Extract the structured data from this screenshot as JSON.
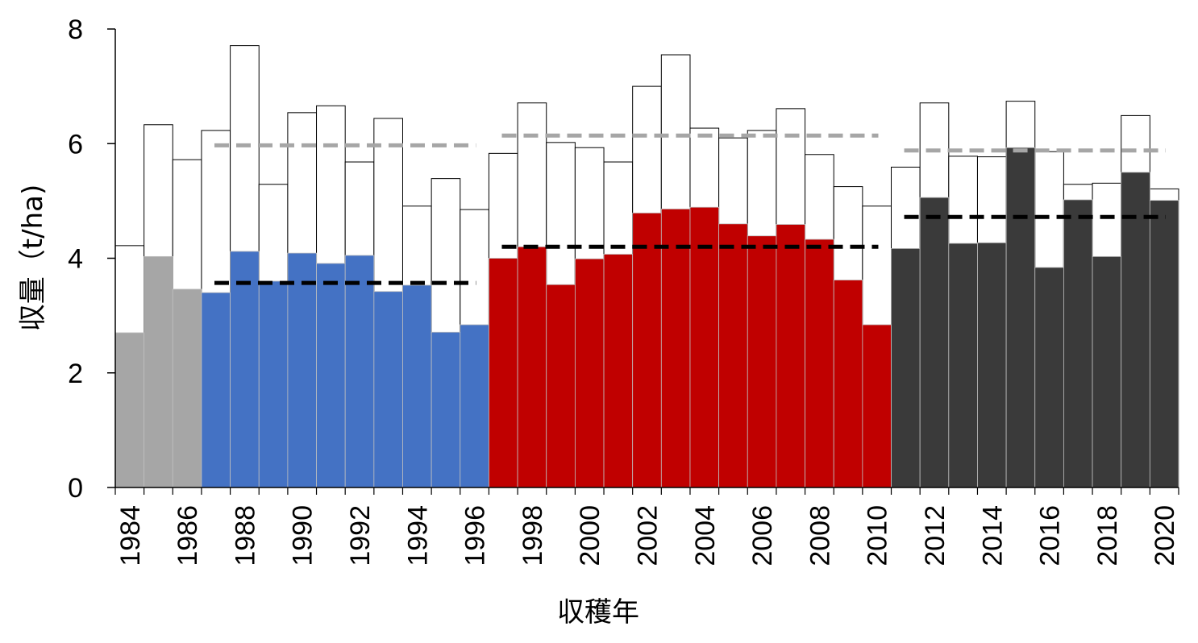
{
  "chart_data": {
    "type": "bar",
    "xlabel": "収穫年",
    "ylabel": "収量（t/ha)",
    "ylim": [
      0,
      8
    ],
    "yticks": [
      0,
      2,
      4,
      6,
      8
    ],
    "grid": false,
    "legend": "none",
    "years": [
      1984,
      1985,
      1986,
      1987,
      1988,
      1989,
      1990,
      1991,
      1992,
      1993,
      1994,
      1995,
      1996,
      1997,
      1998,
      1999,
      2000,
      2001,
      2002,
      2003,
      2004,
      2005,
      2006,
      2007,
      2008,
      2009,
      2010,
      2011,
      2012,
      2013,
      2014,
      2015,
      2016,
      2017,
      2018,
      2019,
      2020
    ],
    "xtick_labels": [
      "1984",
      "1986",
      "1988",
      "1990",
      "1992",
      "1994",
      "1996",
      "1998",
      "2000",
      "2002",
      "2004",
      "2006",
      "2008",
      "2010",
      "2012",
      "2014",
      "2016",
      "2018",
      "2020"
    ],
    "filled_values": [
      2.7,
      4.03,
      3.46,
      3.4,
      4.12,
      3.6,
      4.09,
      3.91,
      4.05,
      3.42,
      3.53,
      2.71,
      2.84,
      4.0,
      4.2,
      3.54,
      3.99,
      4.07,
      4.79,
      4.86,
      4.89,
      4.6,
      4.39,
      4.59,
      4.33,
      3.62,
      2.84,
      4.17,
      5.06,
      4.26,
      4.27,
      5.93,
      3.84,
      5.02,
      4.03,
      5.5,
      5.01
    ],
    "outline_values": [
      4.22,
      6.33,
      5.72,
      6.23,
      7.71,
      5.29,
      6.54,
      6.66,
      5.68,
      6.44,
      4.91,
      5.39,
      4.85,
      5.83,
      6.71,
      6.02,
      5.93,
      5.68,
      7.0,
      7.55,
      6.27,
      6.1,
      6.23,
      6.61,
      5.81,
      5.25,
      4.91,
      5.59,
      6.71,
      5.78,
      5.77,
      6.74,
      5.86,
      5.29,
      5.31,
      6.49,
      5.21
    ],
    "groups": [
      {
        "start": 1984,
        "end": 1986,
        "color": "#a6a6a6"
      },
      {
        "start": 1987,
        "end": 1996,
        "color": "#4472c4"
      },
      {
        "start": 1997,
        "end": 2010,
        "color": "#c00000"
      },
      {
        "start": 2011,
        "end": 2020,
        "color": "#3a3a3a"
      }
    ],
    "mean_lines": [
      {
        "group": "1987-1996",
        "kind": "filled",
        "value": 3.57,
        "color": "#000000"
      },
      {
        "group": "1987-1996",
        "kind": "outline",
        "value": 5.97,
        "color": "#a6a6a6"
      },
      {
        "group": "1997-2010",
        "kind": "filled",
        "value": 4.2,
        "color": "#000000"
      },
      {
        "group": "1997-2010",
        "kind": "outline",
        "value": 6.14,
        "color": "#a6a6a6"
      },
      {
        "group": "2011-2020",
        "kind": "filled",
        "value": 4.72,
        "color": "#000000"
      },
      {
        "group": "2011-2020",
        "kind": "outline",
        "value": 5.88,
        "color": "#a6a6a6"
      }
    ]
  }
}
